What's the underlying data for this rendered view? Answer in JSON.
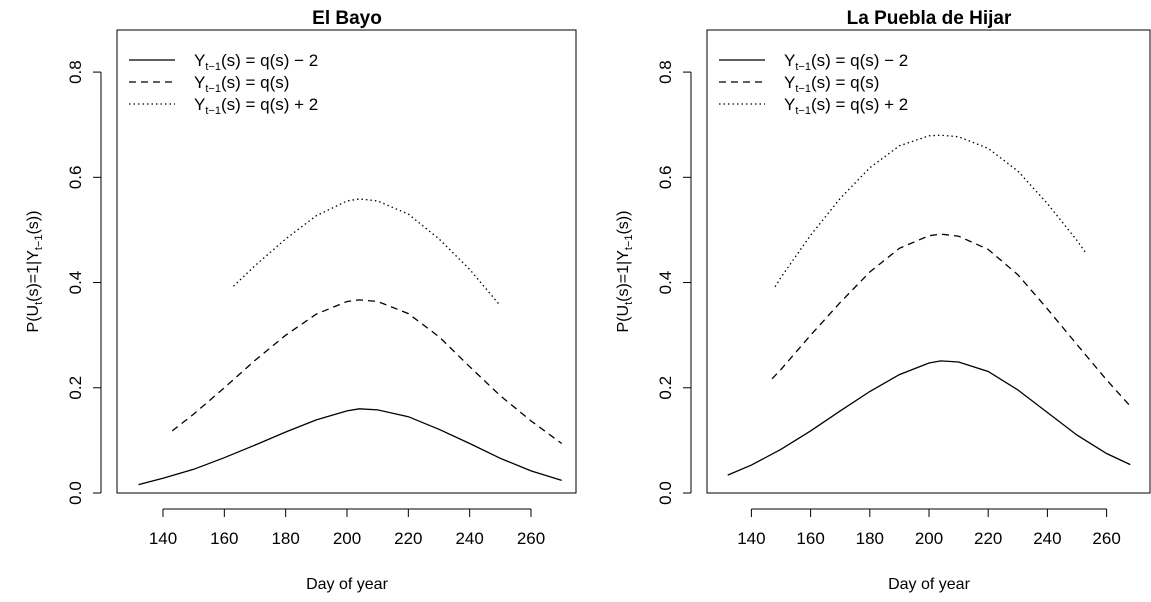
{
  "chart_data": [
    {
      "type": "line",
      "title": "El Bayo",
      "xlabel": "Day of year",
      "ylabel": {
        "base": "P(U",
        "s1": "t",
        "mid": "(s)=1|Y",
        "s2": "t−1",
        "end": "(s))"
      },
      "xlim": [
        125,
        275
      ],
      "ylim": [
        0,
        0.88
      ],
      "xticks": [
        "140",
        "160",
        "180",
        "200",
        "220",
        "240",
        "260"
      ],
      "xtick_values": [
        140,
        160,
        180,
        200,
        220,
        240,
        260
      ],
      "yticks": [
        "0.0",
        "0.2",
        "0.4",
        "0.6",
        "0.8"
      ],
      "ytick_values": [
        0.0,
        0.2,
        0.4,
        0.6,
        0.8
      ],
      "legend_position": "top-left",
      "series": [
        {
          "name": "Yt−1(s) = q(s) − 2",
          "legend_base": "Y",
          "legend_sub": "t−1",
          "legend_rest": "(s) = q(s) − 2",
          "dash": "solid",
          "x": [
            132,
            140,
            150,
            160,
            170,
            180,
            190,
            200,
            204,
            210,
            220,
            230,
            240,
            250,
            260,
            270
          ],
          "y": [
            0.016,
            0.028,
            0.045,
            0.067,
            0.091,
            0.116,
            0.139,
            0.156,
            0.16,
            0.158,
            0.145,
            0.121,
            0.094,
            0.066,
            0.042,
            0.024
          ]
        },
        {
          "name": "Yt−1(s) = q(s)",
          "legend_base": "Y",
          "legend_sub": "t−1",
          "legend_rest": "(s) = q(s)",
          "dash": "dashed",
          "x": [
            143,
            150,
            160,
            170,
            180,
            190,
            200,
            204,
            210,
            220,
            230,
            240,
            250,
            260,
            270
          ],
          "y": [
            0.118,
            0.15,
            0.2,
            0.252,
            0.3,
            0.34,
            0.364,
            0.367,
            0.364,
            0.341,
            0.297,
            0.24,
            0.185,
            0.137,
            0.094
          ]
        },
        {
          "name": "Yt−1(s) = q(s) + 2",
          "legend_base": "Y",
          "legend_sub": "t−1",
          "legend_rest": "(s) = q(s) + 2",
          "dash": "dotted",
          "x": [
            163,
            170,
            180,
            190,
            200,
            204,
            210,
            220,
            230,
            240,
            250
          ],
          "y": [
            0.393,
            0.432,
            0.483,
            0.527,
            0.555,
            0.559,
            0.555,
            0.53,
            0.483,
            0.425,
            0.356
          ]
        }
      ]
    },
    {
      "type": "line",
      "title": "La Puebla de Hijar",
      "xlabel": "Day of year",
      "ylabel": {
        "base": "P(U",
        "s1": "t",
        "mid": "(s)=1|Y",
        "s2": "t−1",
        "end": "(s))"
      },
      "xlim": [
        125,
        275
      ],
      "ylim": [
        0,
        0.88
      ],
      "xticks": [
        "140",
        "160",
        "180",
        "200",
        "220",
        "240",
        "260"
      ],
      "xtick_values": [
        140,
        160,
        180,
        200,
        220,
        240,
        260
      ],
      "yticks": [
        "0.0",
        "0.2",
        "0.4",
        "0.6",
        "0.8"
      ],
      "ytick_values": [
        0.0,
        0.2,
        0.4,
        0.6,
        0.8
      ],
      "legend_position": "top-left",
      "series": [
        {
          "name": "Yt−1(s) = q(s) − 2",
          "legend_base": "Y",
          "legend_sub": "t−1",
          "legend_rest": "(s) = q(s) − 2",
          "dash": "solid",
          "x": [
            132,
            140,
            150,
            160,
            170,
            180,
            190,
            200,
            204,
            210,
            220,
            230,
            240,
            250,
            260,
            268
          ],
          "y": [
            0.034,
            0.053,
            0.083,
            0.118,
            0.156,
            0.193,
            0.225,
            0.247,
            0.251,
            0.249,
            0.231,
            0.196,
            0.153,
            0.11,
            0.075,
            0.054
          ]
        },
        {
          "name": "Yt−1(s) = q(s)",
          "legend_base": "Y",
          "legend_sub": "t−1",
          "legend_rest": "(s) = q(s)",
          "dash": "dashed",
          "x": [
            147,
            150,
            160,
            170,
            180,
            190,
            200,
            204,
            210,
            220,
            230,
            240,
            250,
            260,
            268
          ],
          "y": [
            0.217,
            0.235,
            0.3,
            0.362,
            0.42,
            0.465,
            0.489,
            0.492,
            0.488,
            0.463,
            0.415,
            0.35,
            0.282,
            0.215,
            0.165
          ]
        },
        {
          "name": "Yt−1(s) = q(s) + 2",
          "legend_base": "Y",
          "legend_sub": "t−1",
          "legend_rest": "(s) = q(s) + 2",
          "dash": "dotted",
          "x": [
            148,
            150,
            160,
            170,
            180,
            190,
            200,
            204,
            210,
            220,
            230,
            240,
            250,
            253
          ],
          "y": [
            0.392,
            0.41,
            0.49,
            0.56,
            0.618,
            0.66,
            0.679,
            0.68,
            0.677,
            0.655,
            0.612,
            0.55,
            0.48,
            0.456
          ]
        }
      ]
    }
  ]
}
